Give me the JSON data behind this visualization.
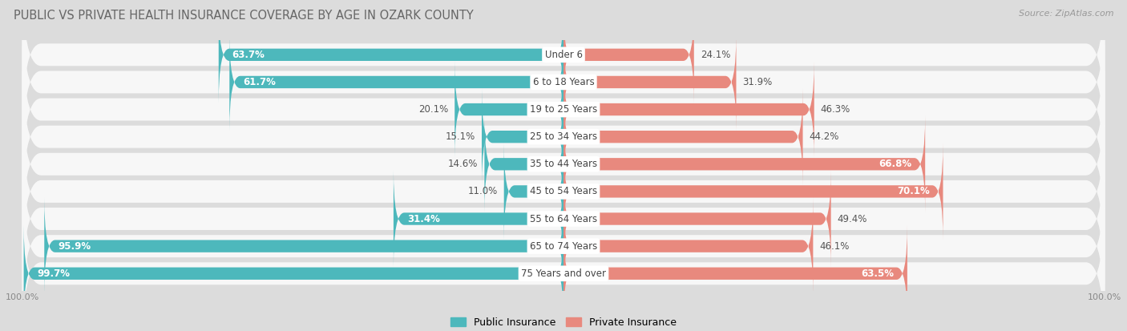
{
  "title": "PUBLIC VS PRIVATE HEALTH INSURANCE COVERAGE BY AGE IN OZARK COUNTY",
  "source": "Source: ZipAtlas.com",
  "categories": [
    "Under 6",
    "6 to 18 Years",
    "19 to 25 Years",
    "25 to 34 Years",
    "35 to 44 Years",
    "45 to 54 Years",
    "55 to 64 Years",
    "65 to 74 Years",
    "75 Years and over"
  ],
  "public_values": [
    63.7,
    61.7,
    20.1,
    15.1,
    14.6,
    11.0,
    31.4,
    95.9,
    99.7
  ],
  "private_values": [
    24.1,
    31.9,
    46.3,
    44.2,
    66.8,
    70.1,
    49.4,
    46.1,
    63.5
  ],
  "public_color": "#4db8bc",
  "private_color": "#e8897e",
  "background_color": "#dcdcdc",
  "row_bg_color": "#f7f7f7",
  "max_value": 100.0,
  "title_fontsize": 10.5,
  "bar_label_fontsize": 8.5,
  "cat_label_fontsize": 8.5,
  "legend_fontsize": 9,
  "source_fontsize": 8,
  "axis_tick_fontsize": 8
}
